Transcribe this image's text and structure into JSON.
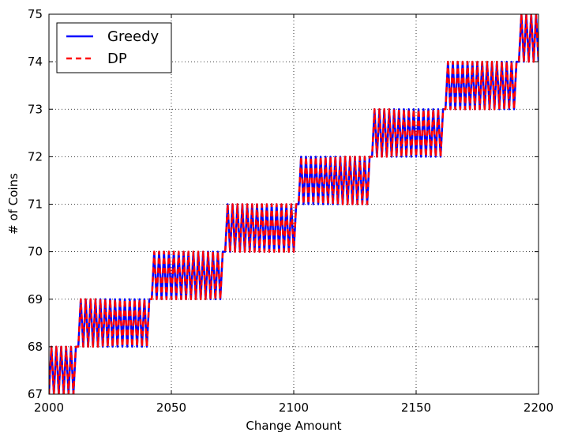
{
  "chart_data": {
    "type": "line",
    "title": "",
    "xlabel": "Change Amount",
    "ylabel": "# of Coins",
    "xlim": [
      2000,
      2200
    ],
    "ylim": [
      67,
      75
    ],
    "xticks": [
      2000,
      2050,
      2100,
      2150,
      2200
    ],
    "yticks": [
      67,
      68,
      69,
      70,
      71,
      72,
      73,
      74,
      75
    ],
    "grid": true,
    "legend_position": "top-left",
    "series": [
      {
        "name": "Greedy",
        "color": "#0000ff",
        "line_style": "solid",
        "x_start": 2000,
        "x_step": 1,
        "values": [
          67,
          68,
          67,
          68,
          67,
          68,
          67,
          68,
          67,
          68,
          67,
          68,
          68,
          69,
          68,
          69,
          68,
          69,
          68,
          69,
          68,
          69,
          68,
          69,
          68,
          69,
          68,
          69,
          68,
          69,
          68,
          69,
          68,
          69,
          68,
          69,
          68,
          69,
          68,
          69,
          68,
          69,
          69,
          70,
          69,
          70,
          69,
          70,
          69,
          70,
          69,
          70,
          69,
          70,
          69,
          70,
          69,
          70,
          69,
          70,
          69,
          70,
          69,
          70,
          69,
          70,
          69,
          70,
          69,
          70,
          69,
          70,
          70,
          71,
          70,
          71,
          70,
          71,
          70,
          71,
          70,
          71,
          70,
          71,
          70,
          71,
          70,
          71,
          70,
          71,
          70,
          71,
          70,
          71,
          70,
          71,
          70,
          71,
          70,
          71,
          70,
          71,
          71,
          72,
          71,
          72,
          71,
          72,
          71,
          72,
          71,
          72,
          71,
          72,
          71,
          72,
          71,
          72,
          71,
          72,
          71,
          72,
          71,
          72,
          71,
          72,
          71,
          72,
          71,
          72,
          71,
          72,
          72,
          73,
          72,
          73,
          72,
          73,
          72,
          73,
          72,
          73,
          72,
          73,
          72,
          73,
          72,
          73,
          72,
          73,
          72,
          73,
          72,
          73,
          72,
          73,
          72,
          73,
          72,
          73,
          72,
          73,
          73,
          74,
          73,
          74,
          73,
          74,
          73,
          74,
          73,
          74,
          73,
          74,
          73,
          74,
          73,
          74,
          73,
          74,
          73,
          74,
          73,
          74,
          73,
          74,
          73,
          74,
          73,
          74,
          73,
          74,
          74,
          75,
          74,
          75,
          74,
          75,
          74,
          75,
          74
        ]
      },
      {
        "name": "DP",
        "color": "#ff0000",
        "line_style": "dashed",
        "x_start": 2000,
        "x_step": 1,
        "values": [
          67,
          68,
          67,
          68,
          67,
          68,
          67,
          68,
          67,
          68,
          67,
          68,
          68,
          69,
          68,
          69,
          68,
          69,
          68,
          69,
          68,
          69,
          68,
          69,
          68,
          69,
          68,
          69,
          68,
          69,
          68,
          69,
          68,
          69,
          68,
          69,
          68,
          69,
          68,
          69,
          68,
          69,
          69,
          70,
          69,
          70,
          69,
          70,
          69,
          70,
          69,
          70,
          69,
          70,
          69,
          70,
          69,
          70,
          69,
          70,
          69,
          70,
          69,
          70,
          69,
          70,
          69,
          70,
          69,
          70,
          69,
          70,
          70,
          71,
          70,
          71,
          70,
          71,
          70,
          71,
          70,
          71,
          70,
          71,
          70,
          71,
          70,
          71,
          70,
          71,
          70,
          71,
          70,
          71,
          70,
          71,
          70,
          71,
          70,
          71,
          70,
          71,
          71,
          72,
          71,
          72,
          71,
          72,
          71,
          72,
          71,
          72,
          71,
          72,
          71,
          72,
          71,
          72,
          71,
          72,
          71,
          72,
          71,
          72,
          71,
          72,
          71,
          72,
          71,
          72,
          71,
          72,
          72,
          73,
          72,
          73,
          72,
          73,
          72,
          73,
          72,
          73,
          72,
          73,
          72,
          73,
          72,
          73,
          72,
          73,
          72,
          73,
          72,
          73,
          72,
          73,
          72,
          73,
          72,
          73,
          72,
          73,
          73,
          74,
          73,
          74,
          73,
          74,
          73,
          74,
          73,
          74,
          73,
          74,
          73,
          74,
          73,
          74,
          73,
          74,
          73,
          74,
          73,
          74,
          73,
          74,
          73,
          74,
          73,
          74,
          73,
          74,
          74,
          75,
          74,
          75,
          74,
          75,
          74,
          75,
          74
        ]
      }
    ]
  }
}
